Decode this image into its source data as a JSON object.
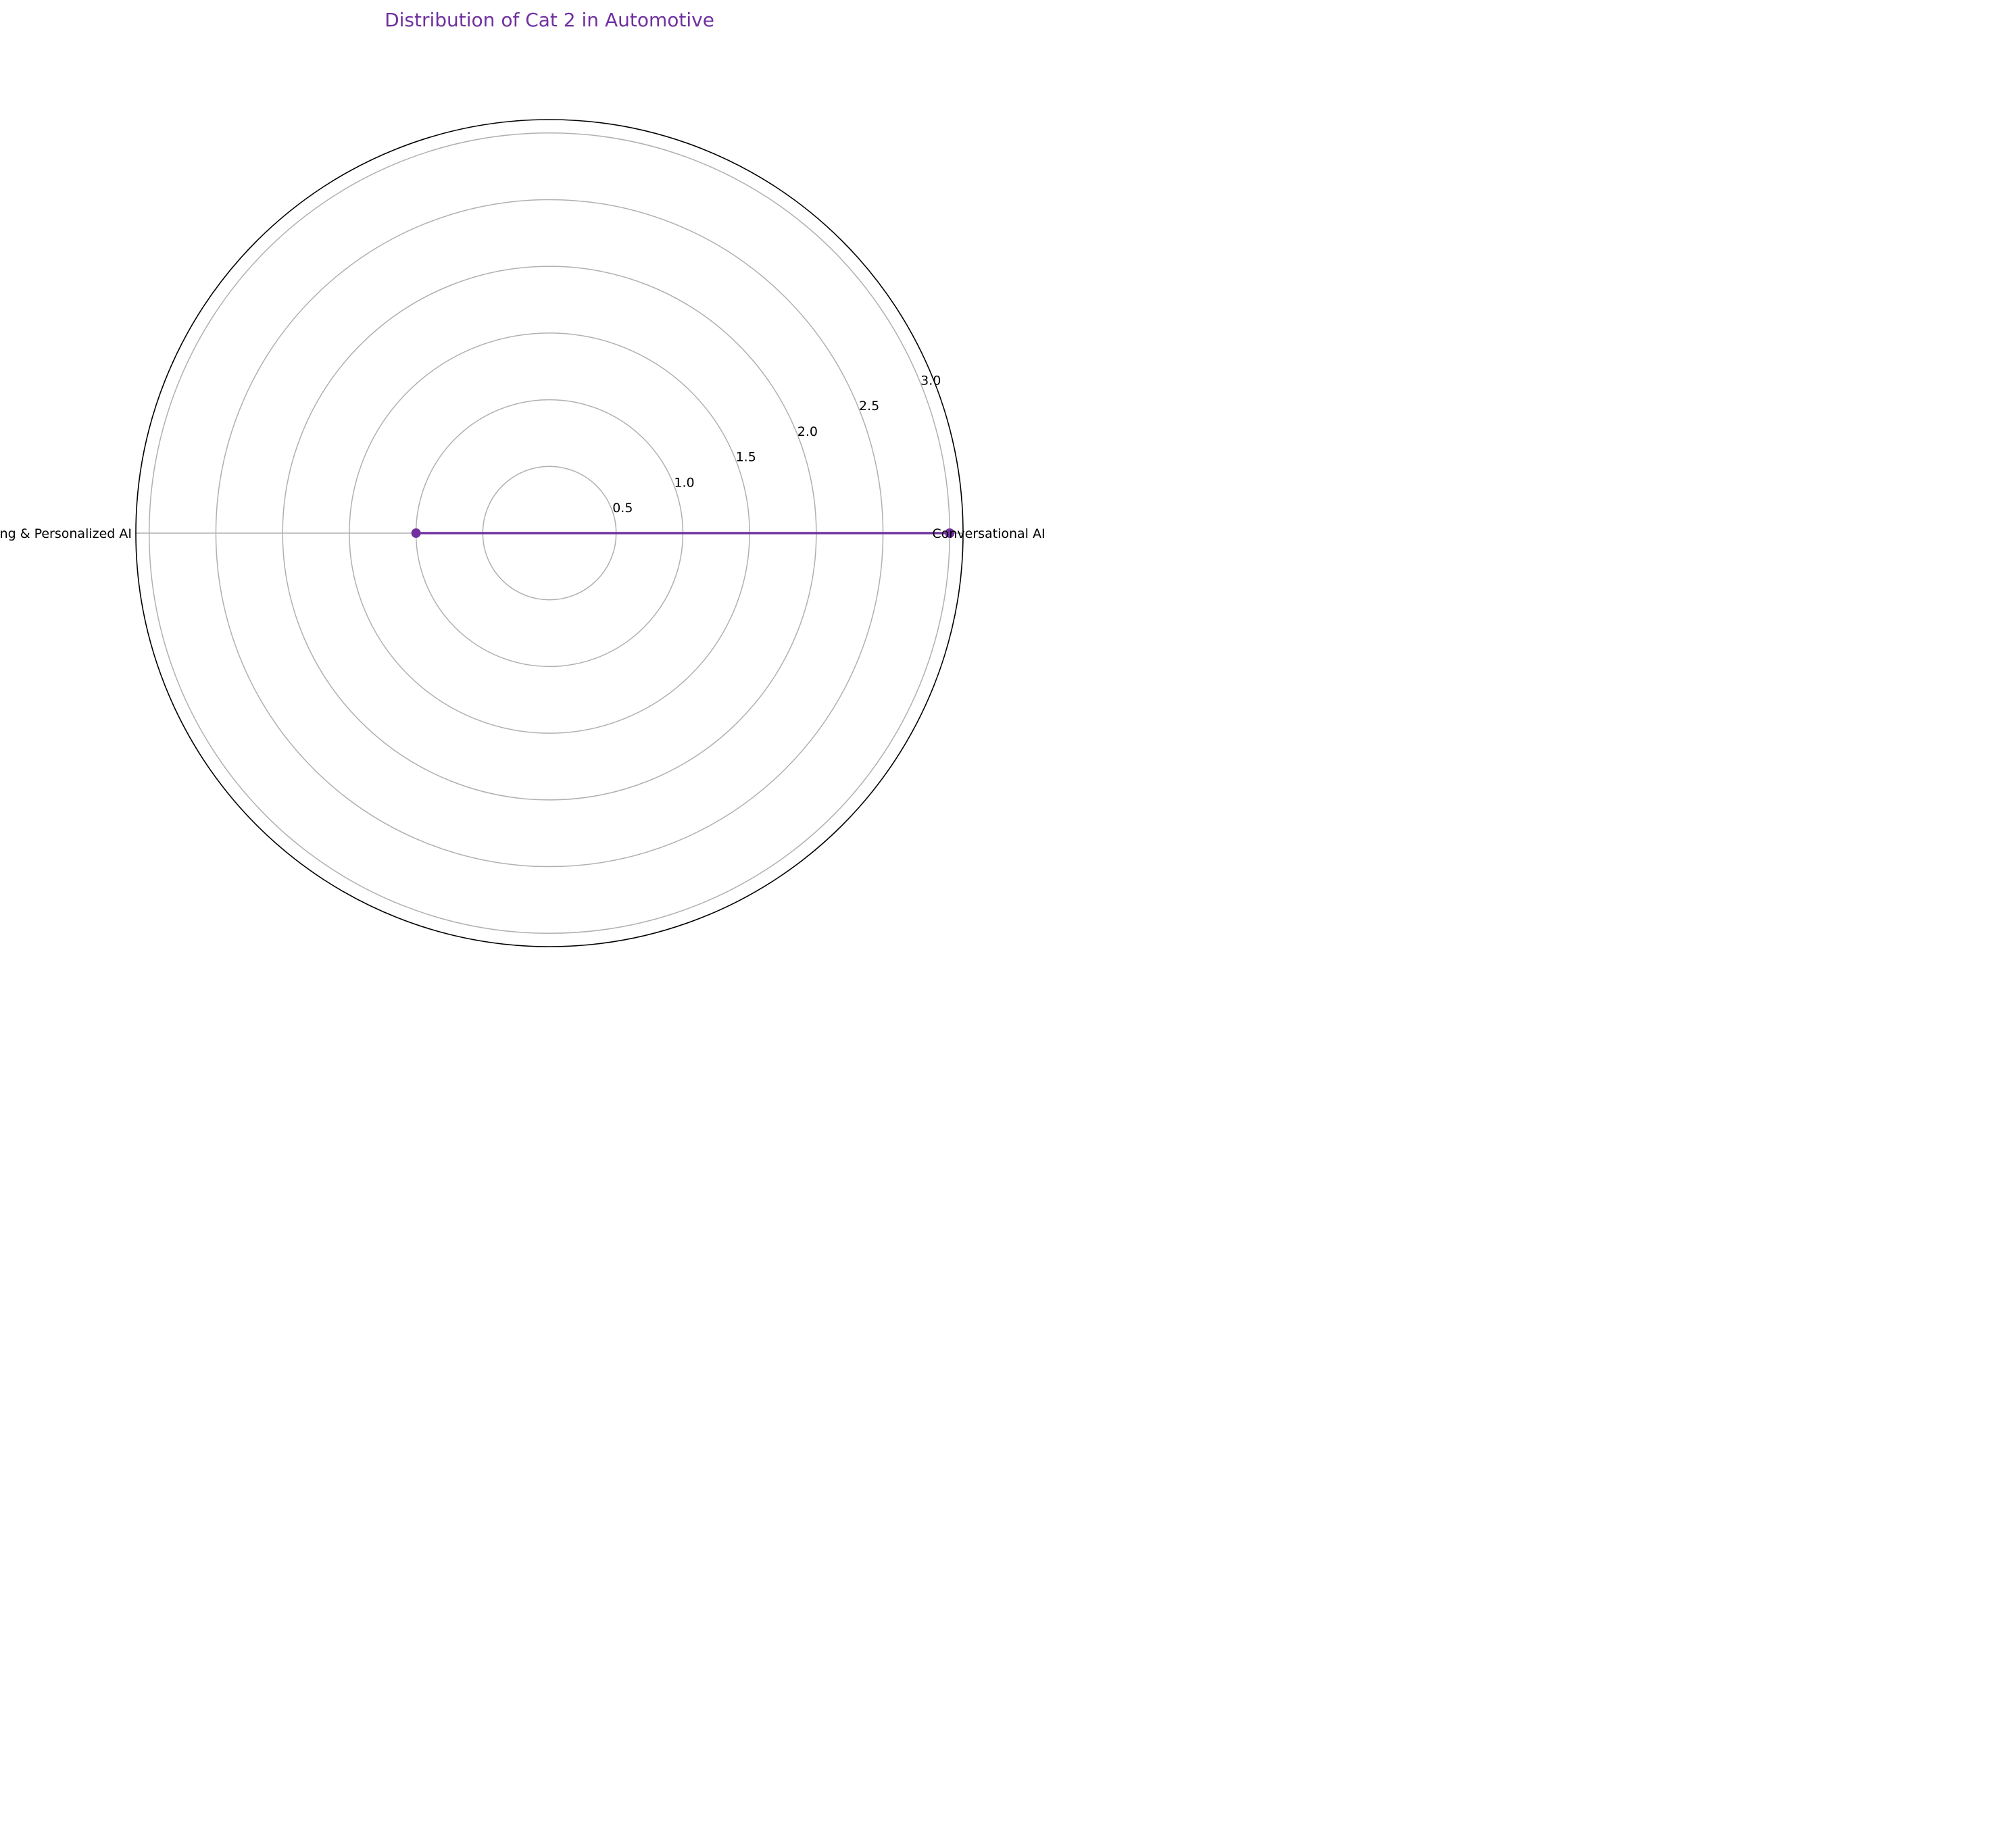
{
  "chart_data": {
    "type": "radar",
    "title": "Distribution of Cat 2 in Automotive",
    "categories": [
      "Conversational AI",
      "Marketing & Personalized AI"
    ],
    "series": [
      {
        "values": [
          3,
          1
        ]
      }
    ],
    "rlim": [
      0,
      3.1
    ],
    "rticks": [
      0.5,
      1.0,
      1.5,
      2.0,
      2.5,
      3.0
    ],
    "rtick_labels": [
      "0.5",
      "1.0",
      "1.5",
      "2.0",
      "2.5",
      "3.0"
    ],
    "grid": true
  },
  "colors": {
    "title": "#7030a0",
    "series": "#7030a0",
    "grid": "#b0b0b0",
    "frame": "#000000"
  }
}
